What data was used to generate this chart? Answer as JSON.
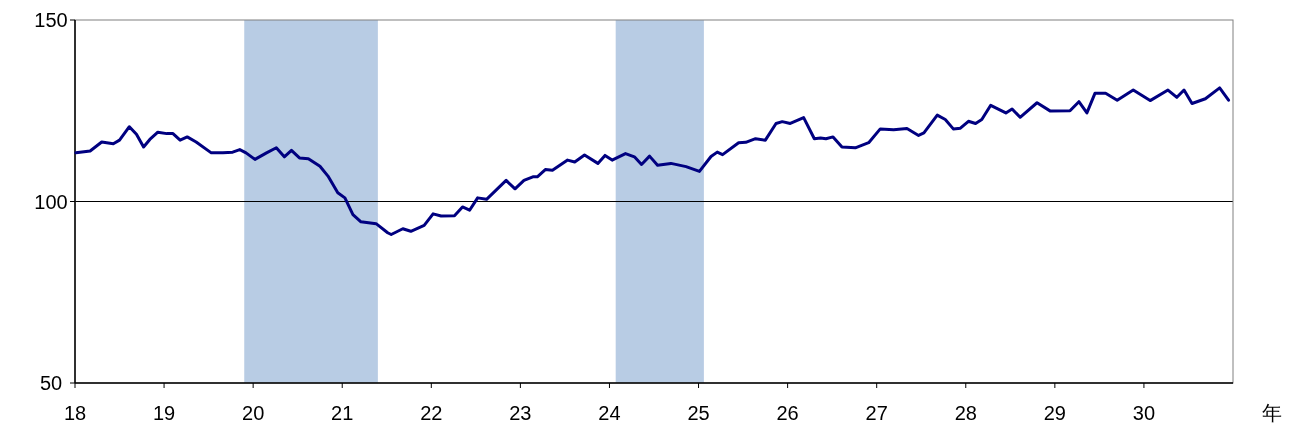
{
  "chart_data": {
    "type": "line",
    "xlabel": "年",
    "xlim": [
      18,
      31
    ],
    "xticks": [
      18,
      19,
      20,
      21,
      22,
      23,
      24,
      25,
      26,
      27,
      28,
      29,
      30
    ],
    "ylim": [
      50,
      150
    ],
    "yticks": [
      50,
      100,
      150
    ],
    "line_style": "solid",
    "ref_lines": [
      {
        "axis": "y",
        "value": 100,
        "color": "#000000"
      }
    ],
    "bands": [
      {
        "axis": "x",
        "from": 19.9,
        "to": 21.4,
        "color": "#b8cce4"
      },
      {
        "axis": "x",
        "from": 24.07,
        "to": 25.06,
        "color": "#b8cce4"
      }
    ],
    "series": [
      {
        "color": "#000080",
        "x": [
          18.01,
          18.17,
          18.3,
          18.43,
          18.5,
          18.61,
          18.69,
          18.77,
          18.84,
          18.93,
          19.03,
          19.1,
          19.18,
          19.26,
          19.36,
          19.53,
          19.66,
          19.77,
          19.85,
          19.92,
          20.02,
          20.15,
          20.26,
          20.35,
          20.43,
          20.52,
          20.62,
          20.75,
          20.84,
          20.95,
          21.03,
          21.12,
          21.21,
          21.38,
          21.51,
          21.55,
          21.68,
          21.77,
          21.92,
          22.02,
          22.11,
          22.26,
          22.35,
          22.43,
          22.52,
          22.62,
          22.84,
          22.94,
          23.04,
          23.14,
          23.19,
          23.28,
          23.36,
          23.53,
          23.61,
          23.72,
          23.87,
          23.95,
          24.03,
          24.18,
          24.28,
          24.36,
          24.45,
          24.54,
          24.69,
          24.86,
          25.01,
          25.14,
          25.21,
          25.27,
          25.45,
          25.53,
          25.64,
          25.75,
          25.87,
          25.94,
          26.03,
          26.18,
          26.3,
          26.37,
          26.43,
          26.51,
          26.61,
          26.76,
          26.91,
          27.04,
          27.19,
          27.34,
          27.47,
          27.53,
          27.68,
          27.77,
          27.86,
          27.94,
          28.03,
          28.11,
          28.18,
          28.28,
          28.45,
          28.52,
          28.61,
          28.8,
          28.95,
          29.17,
          29.27,
          29.36,
          29.45,
          29.57,
          29.7,
          29.88,
          30.07,
          30.27,
          30.37,
          30.45,
          30.54,
          30.69,
          30.85,
          30.95
        ],
        "values": [
          113.4,
          113.9,
          116.4,
          115.9,
          116.9,
          120.6,
          118.5,
          115.0,
          117.1,
          119.1,
          118.7,
          118.7,
          116.9,
          117.8,
          116.4,
          113.4,
          113.4,
          113.6,
          114.3,
          113.4,
          111.6,
          113.4,
          114.8,
          112.3,
          114.1,
          112.0,
          111.8,
          109.7,
          107.0,
          102.4,
          101.0,
          96.4,
          94.4,
          93.9,
          91.4,
          90.9,
          92.5,
          91.8,
          93.4,
          96.6,
          96.0,
          96.1,
          98.5,
          97.6,
          101.0,
          100.6,
          105.8,
          103.5,
          105.8,
          106.8,
          106.8,
          108.8,
          108.6,
          111.4,
          110.9,
          112.8,
          110.5,
          112.7,
          111.4,
          113.2,
          112.3,
          110.2,
          112.5,
          110.0,
          110.5,
          109.6,
          108.3,
          112.4,
          113.6,
          112.9,
          116.2,
          116.3,
          117.3,
          116.9,
          121.5,
          122.0,
          121.5,
          123.1,
          117.3,
          117.5,
          117.3,
          117.8,
          115.0,
          114.8,
          116.2,
          120.0,
          119.8,
          120.1,
          118.2,
          118.9,
          123.8,
          122.6,
          120.0,
          120.2,
          122.1,
          121.5,
          122.6,
          126.5,
          124.4,
          125.5,
          123.2,
          127.2,
          124.9,
          125.0,
          127.5,
          124.4,
          129.8,
          129.8,
          127.9,
          130.7,
          127.8,
          130.7,
          128.7,
          130.7,
          127.0,
          128.3,
          131.3,
          127.9
        ]
      }
    ]
  }
}
